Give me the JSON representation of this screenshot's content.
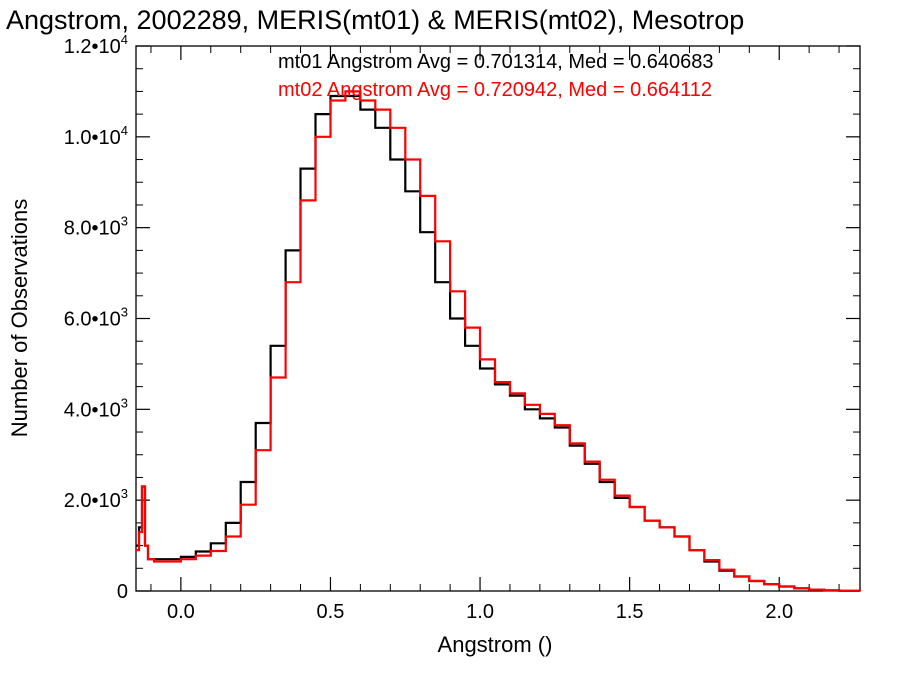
{
  "chart_data": {
    "type": "line",
    "title": "Angstrom, 2002289, MERIS(mt01) & MERIS(mt02), Mesotrop",
    "xlabel": "Angstrom ()",
    "ylabel": "Number of Observations",
    "xlim": [
      -0.15,
      2.27
    ],
    "ylim": [
      0,
      12000
    ],
    "grid": false,
    "x_ticks": [
      {
        "value": 0.0,
        "label": "0.0"
      },
      {
        "value": 0.5,
        "label": "0.5"
      },
      {
        "value": 1.0,
        "label": "1.0"
      },
      {
        "value": 1.5,
        "label": "1.5"
      },
      {
        "value": 2.0,
        "label": "2.0"
      }
    ],
    "y_ticks": [
      {
        "value": 0,
        "label": "0",
        "exp": ""
      },
      {
        "value": 2000,
        "label": "2.0•10",
        "exp": "3"
      },
      {
        "value": 4000,
        "label": "4.0•10",
        "exp": "3"
      },
      {
        "value": 6000,
        "label": "6.0•10",
        "exp": "3"
      },
      {
        "value": 8000,
        "label": "8.0•10",
        "exp": "3"
      },
      {
        "value": 10000,
        "label": "1.0•10",
        "exp": "4"
      },
      {
        "value": 12000,
        "label": "1.2•10",
        "exp": "4"
      }
    ],
    "annotations": [
      {
        "text": "mt01 Angstrom Avg = 0.701314, Med = 0.640683",
        "color": "#000000"
      },
      {
        "text": "mt02 Angstrom Avg = 0.720942, Med = 0.664112",
        "color": "#ff0000"
      }
    ],
    "series": [
      {
        "color": "#000000",
        "x": [
          -0.15,
          -0.14,
          -0.13,
          -0.12,
          -0.11,
          -0.09,
          -0.05,
          0.0,
          0.05,
          0.1,
          0.15,
          0.2,
          0.25,
          0.3,
          0.35,
          0.4,
          0.45,
          0.5,
          0.55,
          0.6,
          0.65,
          0.7,
          0.75,
          0.8,
          0.85,
          0.9,
          0.95,
          1.0,
          1.05,
          1.1,
          1.15,
          1.2,
          1.25,
          1.3,
          1.35,
          1.4,
          1.45,
          1.5,
          1.55,
          1.6,
          1.65,
          1.7,
          1.75,
          1.8,
          1.85,
          1.9,
          1.95,
          2.0,
          2.05,
          2.1,
          2.15,
          2.2,
          2.27
        ],
        "y": [
          1000,
          1400,
          2300,
          1000,
          700,
          700,
          700,
          750,
          870,
          1050,
          1500,
          2400,
          3700,
          5400,
          7500,
          9300,
          10500,
          10900,
          10900,
          10600,
          10200,
          9500,
          8800,
          7900,
          6800,
          6000,
          5400,
          4900,
          4550,
          4300,
          4000,
          3800,
          3600,
          3200,
          2800,
          2400,
          2050,
          1850,
          1550,
          1400,
          1200,
          900,
          650,
          450,
          320,
          220,
          150,
          100,
          60,
          30,
          15,
          5,
          0
        ]
      },
      {
        "color": "#ff0000",
        "x": [
          -0.15,
          -0.14,
          -0.13,
          -0.12,
          -0.11,
          -0.09,
          -0.05,
          0.0,
          0.05,
          0.1,
          0.15,
          0.2,
          0.25,
          0.3,
          0.35,
          0.4,
          0.45,
          0.5,
          0.55,
          0.6,
          0.65,
          0.7,
          0.75,
          0.8,
          0.85,
          0.9,
          0.95,
          1.0,
          1.05,
          1.1,
          1.15,
          1.2,
          1.25,
          1.3,
          1.35,
          1.4,
          1.45,
          1.5,
          1.55,
          1.6,
          1.65,
          1.7,
          1.75,
          1.8,
          1.85,
          1.9,
          1.95,
          2.0,
          2.05,
          2.1,
          2.15,
          2.2,
          2.27
        ],
        "y": [
          900,
          1300,
          2300,
          1000,
          700,
          650,
          650,
          700,
          780,
          880,
          1200,
          1900,
          3100,
          4700,
          6800,
          8600,
          10000,
          10800,
          11000,
          10800,
          10600,
          10200,
          9500,
          8700,
          7700,
          6600,
          5800,
          5100,
          4600,
          4350,
          4100,
          3900,
          3650,
          3250,
          2850,
          2450,
          2100,
          1850,
          1550,
          1400,
          1200,
          900,
          680,
          470,
          320,
          220,
          150,
          100,
          60,
          30,
          15,
          5,
          0
        ]
      }
    ]
  }
}
